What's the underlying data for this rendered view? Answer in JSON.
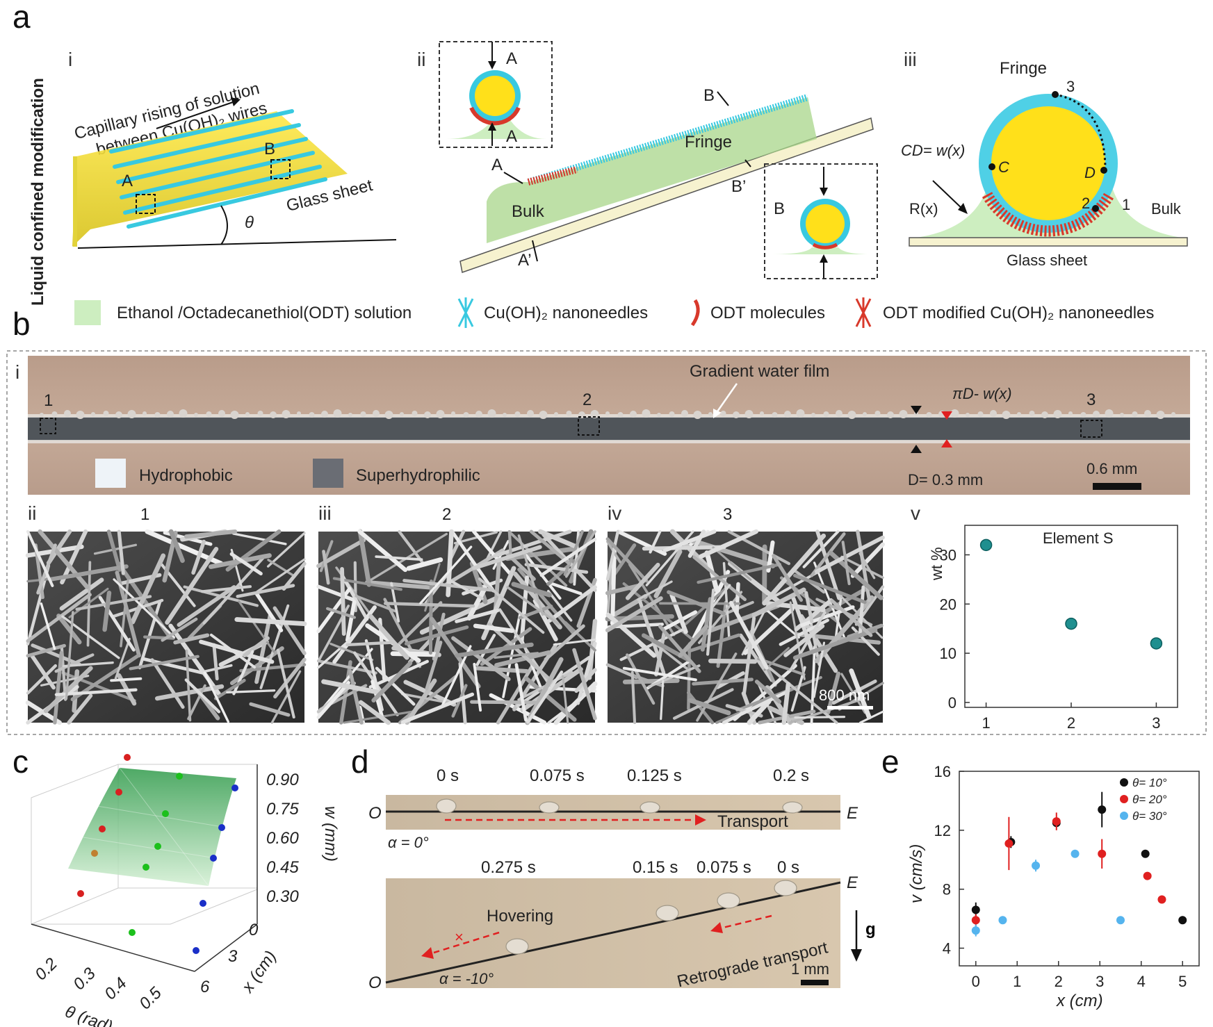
{
  "panels": {
    "a": {
      "letter": "a",
      "side_label": "Liquid confined modification",
      "i": {
        "label": "i",
        "caption_line1": "Capillary rising of solution",
        "caption_line2": "between Cu(OH)₂ wires",
        "box_a": "A",
        "box_b": "B",
        "glass": "Glass sheet",
        "angle": "θ"
      },
      "ii": {
        "label": "ii",
        "fringe": "Fringe",
        "bulk": "Bulk",
        "a_top": "A",
        "a_bottom": "A",
        "a_mark": "A",
        "a_prime": "A’",
        "b_mark": "B",
        "b_prime": "B’",
        "b_inset": "B"
      },
      "iii": {
        "label": "iii",
        "fringe": "Fringe",
        "cd_eq": "CD= w(x)",
        "c": "C",
        "d": "D",
        "rx": "R(x)",
        "bulk": "Bulk",
        "glass": "Glass sheet",
        "p1": "1",
        "p2": "2",
        "p3": "3"
      },
      "legend": [
        {
          "label": "Ethanol /Octadecanethiol(ODT) solution",
          "icon": "solution-swatch"
        },
        {
          "label": "Cu(OH)₂ nanoneedles",
          "icon": "nanoneedle-icon"
        },
        {
          "label": "ODT molecules",
          "icon": "odt-molecule-icon"
        },
        {
          "label": "ODT modified Cu(OH)₂ nanoneedles",
          "icon": "modified-nanoneedle-icon"
        }
      ]
    },
    "b": {
      "letter": "b",
      "i": {
        "label": "i",
        "film_label": "Gradient water film",
        "width_label": "πD- w(x)",
        "d_label": "D= 0.3 mm",
        "scale": "0.6 mm",
        "hydrophobic": "Hydrophobic",
        "superhydrophilic": "Superhydrophilic",
        "p1": "1",
        "p2": "2",
        "p3": "3"
      },
      "sem": [
        {
          "roman": "ii",
          "num": "1"
        },
        {
          "roman": "iii",
          "num": "2"
        },
        {
          "roman": "iv",
          "num": "3"
        }
      ],
      "sem_scale": "800 nm",
      "v": {
        "label": "v"
      }
    },
    "c": {
      "letter": "c",
      "z_ticks": [
        "0.90",
        "0.75",
        "0.60",
        "0.45",
        "0.30"
      ],
      "z_label": "w (mm)",
      "theta_ticks": [
        "0.2",
        "0.3",
        "0.4",
        "0.5"
      ],
      "theta_label": "θ (rad)",
      "x_ticks": [
        "0",
        "3",
        "6"
      ],
      "x_label": "x (cm)"
    },
    "d": {
      "letter": "d",
      "top_times": [
        "0 s",
        "0.075 s",
        "0.125 s",
        "0.2 s"
      ],
      "top_o": "O",
      "top_e": "E",
      "transport": "Transport",
      "alpha_top": "α = 0°",
      "bottom_times": [
        "0.275 s",
        "0.15 s",
        "0.075 s",
        "0 s"
      ],
      "bottom_o": "O",
      "bottom_e": "E",
      "hovering": "Hovering",
      "retro": "Retrograde transport",
      "alpha_bottom": "α = -10°",
      "g": "g",
      "scale": "1 mm"
    },
    "e": {
      "letter": "e"
    }
  },
  "chart_data": [
    {
      "type": "scatter",
      "panel": "b-v",
      "title": "Element S",
      "xlabel": "",
      "ylabel": "wt %",
      "x": [
        1,
        2,
        3
      ],
      "y": [
        32,
        16,
        12
      ],
      "xticks": [
        "1",
        "2",
        "3"
      ],
      "yticks": [
        "0",
        "10",
        "20",
        "30"
      ],
      "ylim": [
        -1,
        36
      ],
      "xlim": [
        0.75,
        3.25
      ],
      "color": "#1f8f8f"
    },
    {
      "type": "scatter",
      "panel": "e",
      "xlabel": "x (cm)",
      "ylabel": "v (cm/s)",
      "xlim": [
        -0.4,
        5.4
      ],
      "ylim": [
        2.8,
        16
      ],
      "xticks": [
        "0",
        "1",
        "2",
        "3",
        "4",
        "5"
      ],
      "yticks": [
        "4",
        "8",
        "12",
        "16"
      ],
      "legend_position": "top-right",
      "series": [
        {
          "name": "θ= 10°",
          "color": "#111111",
          "x": [
            0,
            0.85,
            1.95,
            3.05,
            4.1,
            5.0
          ],
          "y": [
            6.6,
            11.2,
            12.5,
            13.4,
            10.4,
            5.9
          ],
          "err": [
            0.5,
            0.4,
            0.3,
            1.2,
            0,
            0
          ]
        },
        {
          "name": "θ= 20°",
          "color": "#e02020",
          "x": [
            0,
            0.8,
            1.95,
            3.05,
            4.15,
            4.5
          ],
          "y": [
            5.9,
            11.1,
            12.6,
            10.4,
            8.9,
            7.3
          ],
          "err": [
            0.4,
            1.8,
            0.6,
            1.0,
            0,
            0
          ]
        },
        {
          "name": "θ= 30°",
          "color": "#55b4ee",
          "x": [
            0,
            0.65,
            1.45,
            2.4,
            3.5
          ],
          "y": [
            5.2,
            5.9,
            9.6,
            10.4,
            5.9
          ],
          "err": [
            0.4,
            0,
            0.4,
            0,
            0
          ]
        }
      ]
    }
  ]
}
